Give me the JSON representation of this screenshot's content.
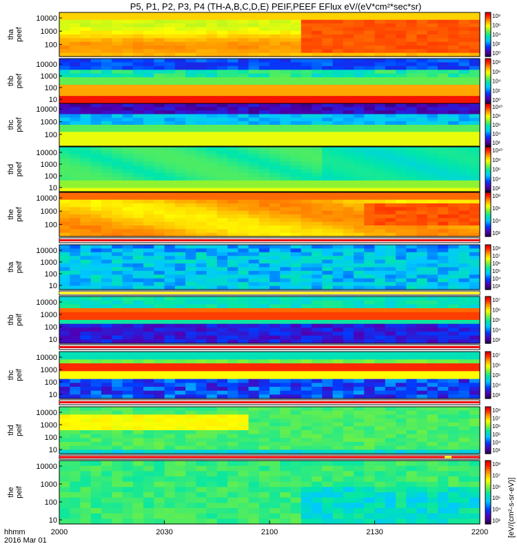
{
  "chart_data": {
    "type": "heatmap",
    "title": "P5, P1, P2, P3, P4 (TH-A,B,C,D,E) PEIF,PEEF EFlux eV/(eV*cm²*sec*sr)",
    "x_ticks": [
      "2000",
      "2030",
      "2100",
      "2130",
      "2200"
    ],
    "x_label": "hhmm",
    "date_label": "2016 Mar 01",
    "colorbar_label": "[eV/(cm²-s-sr-eV)]",
    "scale": "log",
    "panels": [
      {
        "id": "tha_peef",
        "label_top": "tha",
        "label_bottom": "peef",
        "y_ticks": [
          "10000",
          "1000",
          "100"
        ],
        "colorbar_ticks": [
          "10⁸",
          "10⁶",
          "10⁴",
          "10²",
          "10⁰"
        ],
        "pattern": "tha_peef"
      },
      {
        "id": "thb_peef",
        "label_top": "thb",
        "label_bottom": "peef",
        "y_ticks": [
          "10000",
          "1000",
          "100",
          "10"
        ],
        "colorbar_ticks": [
          "10⁸",
          "10⁶",
          "10⁴",
          "10²",
          "10⁰"
        ],
        "pattern": "thb_peef"
      },
      {
        "id": "thc_peef",
        "label_top": "thc",
        "label_bottom": "peef",
        "y_ticks": [
          "10000",
          "1000",
          "100"
        ],
        "colorbar_ticks": [
          "10¹⁰",
          "10⁸",
          "10⁶",
          "10⁴",
          "10²"
        ],
        "pattern": "thc_peef"
      },
      {
        "id": "thd_peef",
        "label_top": "thd",
        "label_bottom": "peef",
        "y_ticks": [
          "10000",
          "1000",
          "100",
          "10"
        ],
        "colorbar_ticks": [
          "10¹⁰",
          "10⁸",
          "10⁶",
          "10⁴",
          "10²"
        ],
        "pattern": "thd_peef"
      },
      {
        "id": "the_peef",
        "label_top": "the",
        "label_bottom": "peef",
        "y_ticks": [
          "10000",
          "1000",
          "100"
        ],
        "colorbar_ticks": [
          "10⁸",
          "10⁶",
          "10⁴",
          "10³"
        ],
        "pattern": "the_peef"
      },
      {
        "id": "tha_peif",
        "label_top": "tha",
        "label_bottom": "peif",
        "y_ticks": [
          "10000",
          "1000",
          "100",
          "10"
        ],
        "colorbar_ticks": [
          "10⁸",
          "10⁷",
          "10⁶",
          "10⁵",
          "10⁴",
          "10³"
        ],
        "pattern": "tha_peif"
      },
      {
        "id": "thb_peif",
        "label_top": "thb",
        "label_bottom": "peif",
        "y_ticks": [
          "10000",
          "1000",
          "100",
          "10"
        ],
        "colorbar_ticks": [
          "10⁷",
          "10⁶",
          "10⁵",
          "10⁴",
          "10³"
        ],
        "pattern": "thb_peif"
      },
      {
        "id": "thc_peif",
        "label_top": "thc",
        "label_bottom": "peif",
        "y_ticks": [
          "10000",
          "1000",
          "100",
          "10"
        ],
        "colorbar_ticks": [
          "10⁷",
          "10⁶",
          "10⁵",
          "10⁴",
          "10³"
        ],
        "pattern": "thc_peif"
      },
      {
        "id": "thd_peif",
        "label_top": "thd",
        "label_bottom": "peif",
        "y_ticks": [
          "10000",
          "1000",
          "100",
          "10"
        ],
        "colorbar_ticks": [
          "10⁸",
          "10⁷",
          "10⁶",
          "10⁵",
          "10⁴",
          "10³"
        ],
        "pattern": "thd_peif"
      },
      {
        "id": "the_peif",
        "label_top": "the",
        "label_bottom": "peif",
        "y_ticks": [
          "10000",
          "1000",
          "100",
          "10"
        ],
        "colorbar_ticks": [
          "10⁸",
          "10⁷",
          "10⁶",
          "10⁵",
          "10⁴",
          "10³"
        ],
        "pattern": "the_peif"
      }
    ]
  }
}
